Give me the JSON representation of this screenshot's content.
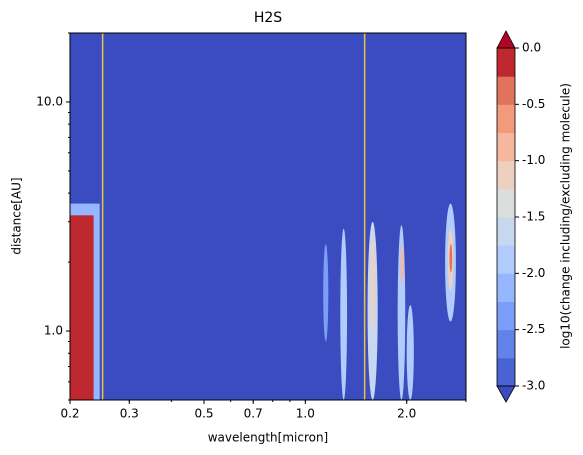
{
  "chart_data": {
    "type": "contour",
    "title": "H2S",
    "x_label": "wavelength[micron]",
    "y_label": "distance[AU]",
    "xscale": "log",
    "yscale": "log",
    "xlim": [
      0.2,
      3.0
    ],
    "ylim": [
      0.5,
      20
    ],
    "xticks": [
      0.2,
      0.3,
      0.5,
      0.7,
      {
        "value": 1,
        "label": "1.0"
      },
      {
        "value": 2,
        "label": "2.0"
      }
    ],
    "yticks": [
      {
        "value": 1,
        "label": "1.0"
      },
      {
        "value": 10,
        "label": "10.0"
      }
    ],
    "vlines": {
      "color": "#e8c53a",
      "x": [
        0.25,
        1.5
      ]
    },
    "regions": [
      {
        "shape": "rect",
        "x": [
          0.2,
          0.245
        ],
        "y": [
          0.5,
          3.6
        ],
        "level": -2.2
      },
      {
        "shape": "rect",
        "x": [
          0.2,
          0.235
        ],
        "y": [
          0.5,
          3.2
        ],
        "level": -0.1
      },
      {
        "shape": "ellipse",
        "x": [
          1.13,
          1.17
        ],
        "y": [
          0.9,
          2.4
        ],
        "level": -2.4
      },
      {
        "shape": "ellipse",
        "x": [
          1.27,
          1.33
        ],
        "y": [
          0.5,
          2.8
        ],
        "level": -1.8
      },
      {
        "shape": "ellipse",
        "x": [
          1.53,
          1.64
        ],
        "y": [
          0.5,
          3.0
        ],
        "level": -1.6
      },
      {
        "shape": "ellipse",
        "x": [
          1.56,
          1.61
        ],
        "y": [
          1.0,
          2.6
        ],
        "level": -1.2
      },
      {
        "shape": "ellipse",
        "x": [
          1.88,
          1.98
        ],
        "y": [
          0.5,
          2.9
        ],
        "level": -1.8
      },
      {
        "shape": "ellipse",
        "x": [
          1.92,
          1.96
        ],
        "y": [
          1.6,
          2.4
        ],
        "level": -0.9
      },
      {
        "shape": "ellipse",
        "x": [
          2.0,
          2.1
        ],
        "y": [
          0.5,
          1.3
        ],
        "level": -1.8
      },
      {
        "shape": "ellipse",
        "x": [
          2.6,
          2.8
        ],
        "y": [
          1.1,
          3.6
        ],
        "level": -2.0
      },
      {
        "shape": "ellipse",
        "x": [
          2.65,
          2.75
        ],
        "y": [
          1.5,
          2.8
        ],
        "level": -1.2
      },
      {
        "shape": "ellipse",
        "x": [
          2.68,
          2.73
        ],
        "y": [
          1.8,
          2.4
        ],
        "level": -0.4
      }
    ],
    "colorbar": {
      "label": "log10(change including/excluding molecule)",
      "clim": [
        -3.0,
        0.0
      ],
      "ticks": [
        {
          "value": 0,
          "label": "0.0"
        },
        -0.5,
        {
          "value": -1,
          "label": "-1.0"
        },
        -1.5,
        {
          "value": -2,
          "label": "-2.0"
        },
        -2.5,
        {
          "value": -3,
          "label": "-3.0"
        }
      ],
      "under_color": "#3b4cc0",
      "over_color": "#b40426",
      "colors": [
        "#4a63d3",
        "#6282ea",
        "#7b9ff9",
        "#96b7ff",
        "#b0cbfc",
        "#c7d7f0",
        "#dcdddd",
        "#edd0c0",
        "#f5b89f",
        "#f39a7b",
        "#e1735a",
        "#c0282f"
      ]
    }
  }
}
